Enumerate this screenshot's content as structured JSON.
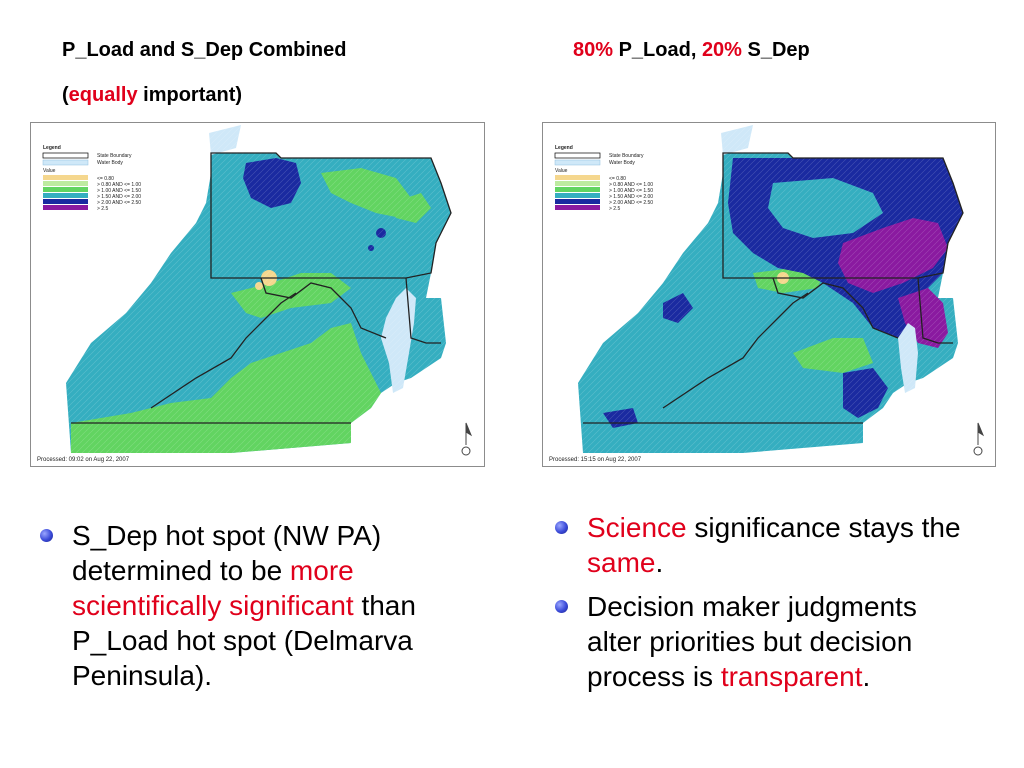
{
  "slide": {
    "left_title": {
      "line1": "P_Load and S_Dep Combined",
      "line2_open": "(",
      "line2_red": "equally",
      "line2_rest": " important)"
    },
    "right_title": {
      "part1_red": "80%",
      "part2": " P_Load, ",
      "part3_red": "20%",
      "part4": " S_Dep"
    },
    "left_map": {
      "legend_title": "Legend",
      "legend_items": [
        "State Boundary",
        "Water Body"
      ],
      "value_title": "Value",
      "value_items": [
        "<= 0.80",
        "> 0.80 AND <= 1.00",
        "> 1.00 AND <= 1.50",
        "> 1.50 AND <= 2.00",
        "> 2.00 AND <= 2.50",
        "> 2.5"
      ],
      "processed": "Processed: 09:02 on Aug 22, 2007"
    },
    "right_map": {
      "legend_title": "Legend",
      "legend_items": [
        "State Boundary",
        "Water Body"
      ],
      "value_title": "Value",
      "value_items": [
        "<= 0.80",
        "> 0.80 AND <= 1.00",
        "> 1.00 AND <= 1.50",
        "> 1.50 AND <= 2.00",
        "> 2.00 AND <= 2.50",
        "> 2.5"
      ],
      "processed": "Processed: 15:15 on Aug 22, 2007"
    },
    "left_bullets": [
      {
        "text_a": "S_Dep hot spot (NW PA) determined to be ",
        "text_red": "more scientifically significant",
        "text_b": " than P_Load hot spot (Delmarva Peninsula)."
      }
    ],
    "right_bullets": [
      {
        "text_red": "Science",
        "text_b": " significance stays the ",
        "text_red2": "same",
        "text_c": "."
      },
      {
        "text_a": "Decision maker judgments alter priorities but decision process is ",
        "text_red": "transparent",
        "text_b": "."
      }
    ],
    "colors": {
      "accent_red": "#e0001b",
      "class_le_080": "#f5d78e",
      "class_080_100": "#bdeba0",
      "class_100_150": "#62d461",
      "class_150_200": "#35aec0",
      "class_200_250": "#1a2aa0",
      "class_gt_250": "#8a1aa0",
      "water": "#cfe8f8"
    }
  }
}
